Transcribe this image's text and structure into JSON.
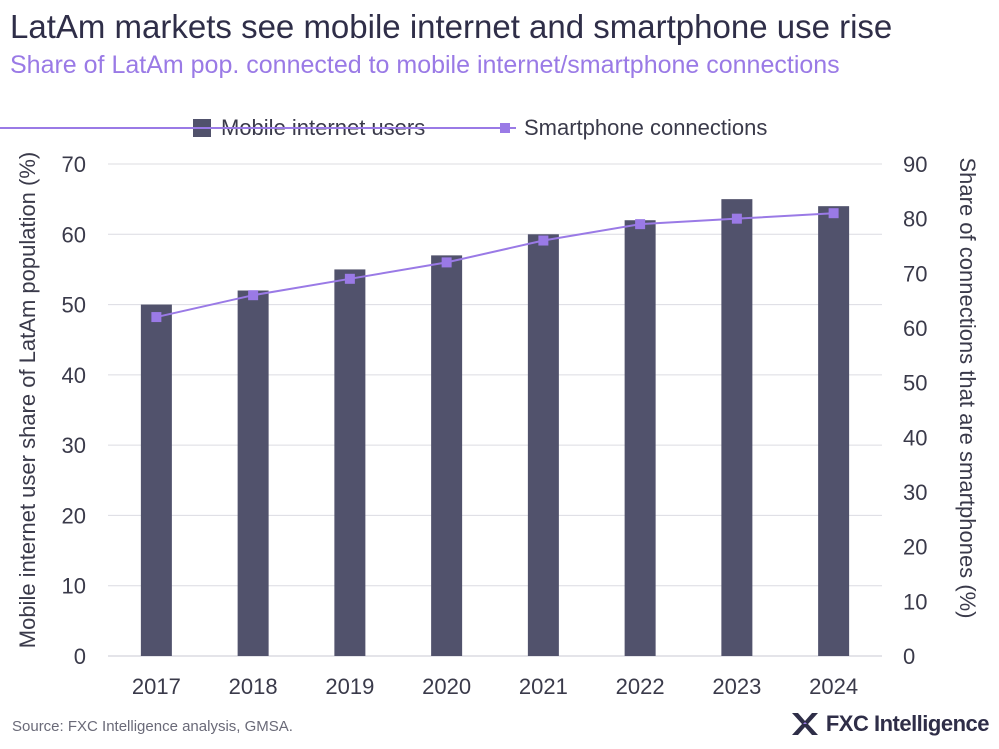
{
  "title": "LatAm markets see mobile internet and smartphone use rise",
  "subtitle": "Share of LatAm pop. connected to mobile internet/smartphone connections",
  "source": "Source: FXC Intelligence analysis, GMSA.",
  "brand": "FXC Intelligence",
  "colors": {
    "bar": "#51526c",
    "line": "#9a7ae6",
    "grid": "#dcdce2",
    "title": "#2f2e48",
    "subtitle": "#9a7ae6"
  },
  "chart_data": {
    "type": "bar",
    "categories": [
      "2017",
      "2018",
      "2019",
      "2020",
      "2021",
      "2022",
      "2023",
      "2024"
    ],
    "series": [
      {
        "name": "Mobile internet users",
        "type": "bar",
        "axis": "left",
        "values": [
          50,
          52,
          55,
          57,
          60,
          62,
          65,
          64
        ]
      },
      {
        "name": "Smartphone connections",
        "type": "line",
        "axis": "right",
        "values": [
          62,
          66,
          69,
          72,
          76,
          79,
          80,
          81
        ]
      }
    ],
    "ylabel": "Mobile internet user share of LatAm population (%)",
    "y2label": "Share of connections that are smartphones (%)",
    "ylim": [
      0,
      70
    ],
    "y2lim": [
      0,
      90
    ],
    "yticks": [
      "0",
      "10",
      "20",
      "30",
      "40",
      "50",
      "60",
      "70"
    ],
    "y2ticks": [
      "0",
      "10",
      "20",
      "30",
      "40",
      "50",
      "60",
      "70",
      "80",
      "90"
    ],
    "grid": true,
    "legend": "top-center"
  }
}
